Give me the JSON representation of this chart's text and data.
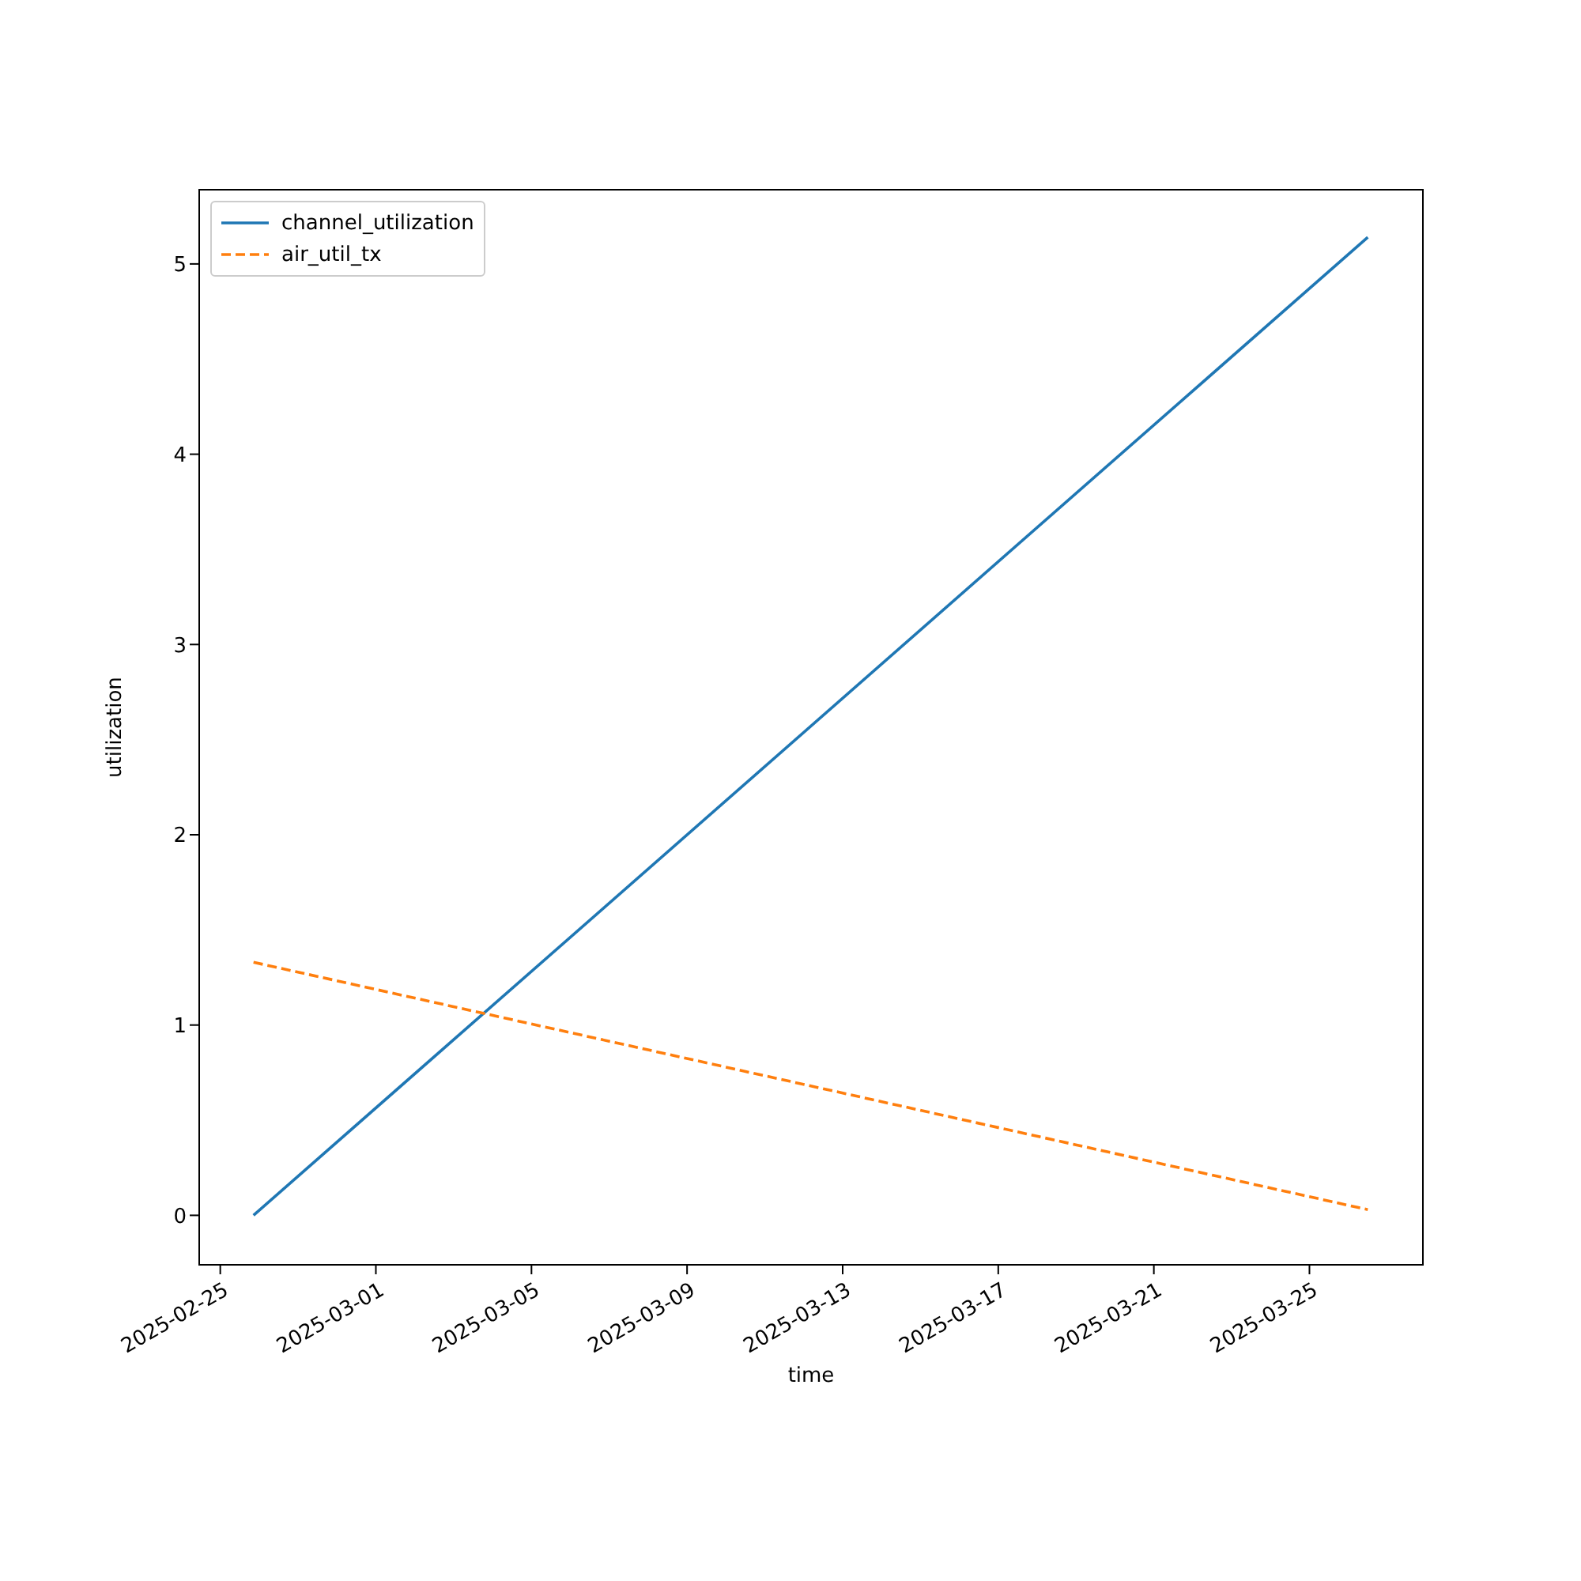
{
  "chart_data": {
    "type": "line",
    "xlabel": "time",
    "ylabel": "utilization",
    "series": [
      {
        "name": "channel_utilization",
        "color": "#1f77b4",
        "line_style": "solid",
        "x": [
          "2025-02-25T20:30",
          "2025-03-26T12:00"
        ],
        "values": [
          0,
          5.14
        ]
      },
      {
        "name": "air_util_tx",
        "color": "#ff7f0e",
        "line_style": "dashed",
        "x": [
          "2025-02-25T20:30",
          "2025-03-26T12:00"
        ],
        "values": [
          1.33,
          0.03
        ]
      }
    ],
    "xlim": [
      "2025-02-24T11:00",
      "2025-03-27T22:00"
    ],
    "xticks": [
      "2025-02-25",
      "2025-03-01",
      "2025-03-05",
      "2025-03-09",
      "2025-03-13",
      "2025-03-17",
      "2025-03-21",
      "2025-03-25"
    ],
    "ylim": [
      -0.26,
      5.39
    ],
    "yticks": [
      0,
      1,
      2,
      3,
      4,
      5
    ],
    "grid": false,
    "legend": "top left",
    "marker": "none"
  }
}
